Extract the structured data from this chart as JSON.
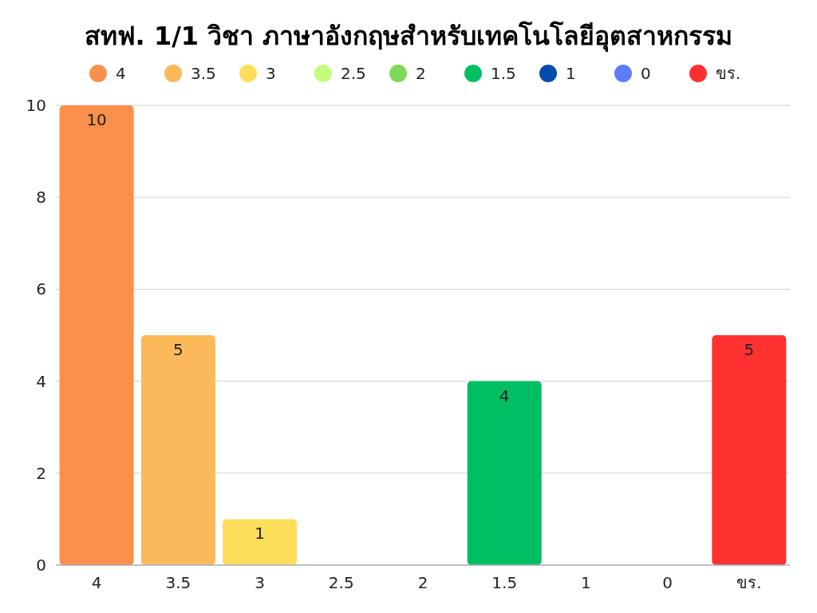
{
  "chart_data": {
    "type": "bar",
    "title": "สทฟ. 1/1 วิชา ภาษาอังกฤษสำหรับเทคโนโลยีอุตสาหกรรม",
    "categories": [
      "4",
      "3.5",
      "3",
      "2.5",
      "2",
      "1.5",
      "1",
      "0",
      "ขร."
    ],
    "stacked": true,
    "series": [
      {
        "name": "4",
        "color": "#fd8f4c",
        "values": [
          10,
          null,
          null,
          null,
          null,
          null,
          null,
          null,
          null
        ],
        "value_labels": [
          "10",
          null,
          null,
          null,
          null,
          null,
          null,
          null,
          null
        ]
      },
      {
        "name": "3.5",
        "color": "#fcb95a",
        "values": [
          null,
          5,
          null,
          null,
          null,
          null,
          null,
          null,
          null
        ],
        "value_labels": [
          null,
          "5",
          null,
          null,
          null,
          null,
          null,
          null,
          null
        ]
      },
      {
        "name": "3",
        "color": "#fedd5b",
        "values": [
          null,
          null,
          1,
          null,
          null,
          null,
          null,
          null,
          null
        ],
        "value_labels": [
          null,
          null,
          "1",
          null,
          null,
          null,
          null,
          null,
          null
        ]
      },
      {
        "name": "2.5",
        "color": "#c3fd79",
        "values": [
          null,
          null,
          null,
          0,
          null,
          null,
          null,
          null,
          null
        ],
        "value_labels": [
          null,
          null,
          null,
          null,
          null,
          null,
          null,
          null,
          null
        ]
      },
      {
        "name": "2",
        "color": "#7ed957",
        "values": [
          null,
          null,
          null,
          null,
          0,
          null,
          null,
          null,
          null
        ],
        "value_labels": [
          null,
          null,
          null,
          null,
          null,
          null,
          null,
          null,
          null
        ]
      },
      {
        "name": "1.5",
        "color": "#00bf63",
        "values": [
          null,
          null,
          null,
          null,
          null,
          4,
          null,
          null,
          null
        ],
        "value_labels": [
          null,
          null,
          null,
          null,
          null,
          "4",
          null,
          null,
          null
        ]
      },
      {
        "name": "1",
        "color": "#004aad",
        "values": [
          null,
          null,
          null,
          null,
          null,
          null,
          0,
          null,
          null
        ],
        "value_labels": [
          null,
          null,
          null,
          null,
          null,
          null,
          null,
          null,
          null
        ]
      },
      {
        "name": "0",
        "color": "#5e7cfa",
        "values": [
          null,
          null,
          null,
          null,
          null,
          null,
          null,
          0,
          null
        ],
        "value_labels": [
          null,
          null,
          null,
          null,
          null,
          null,
          null,
          null,
          null
        ]
      },
      {
        "name": "ขร.",
        "color": "#ff3131",
        "values": [
          null,
          null,
          null,
          null,
          null,
          null,
          null,
          null,
          5
        ],
        "value_labels": [
          null,
          null,
          null,
          null,
          null,
          null,
          null,
          null,
          "5"
        ]
      }
    ],
    "ylim": [
      0,
      10
    ],
    "yticks": [
      0,
      2,
      4,
      6,
      8,
      10
    ],
    "grid": "y",
    "legend": "top"
  }
}
